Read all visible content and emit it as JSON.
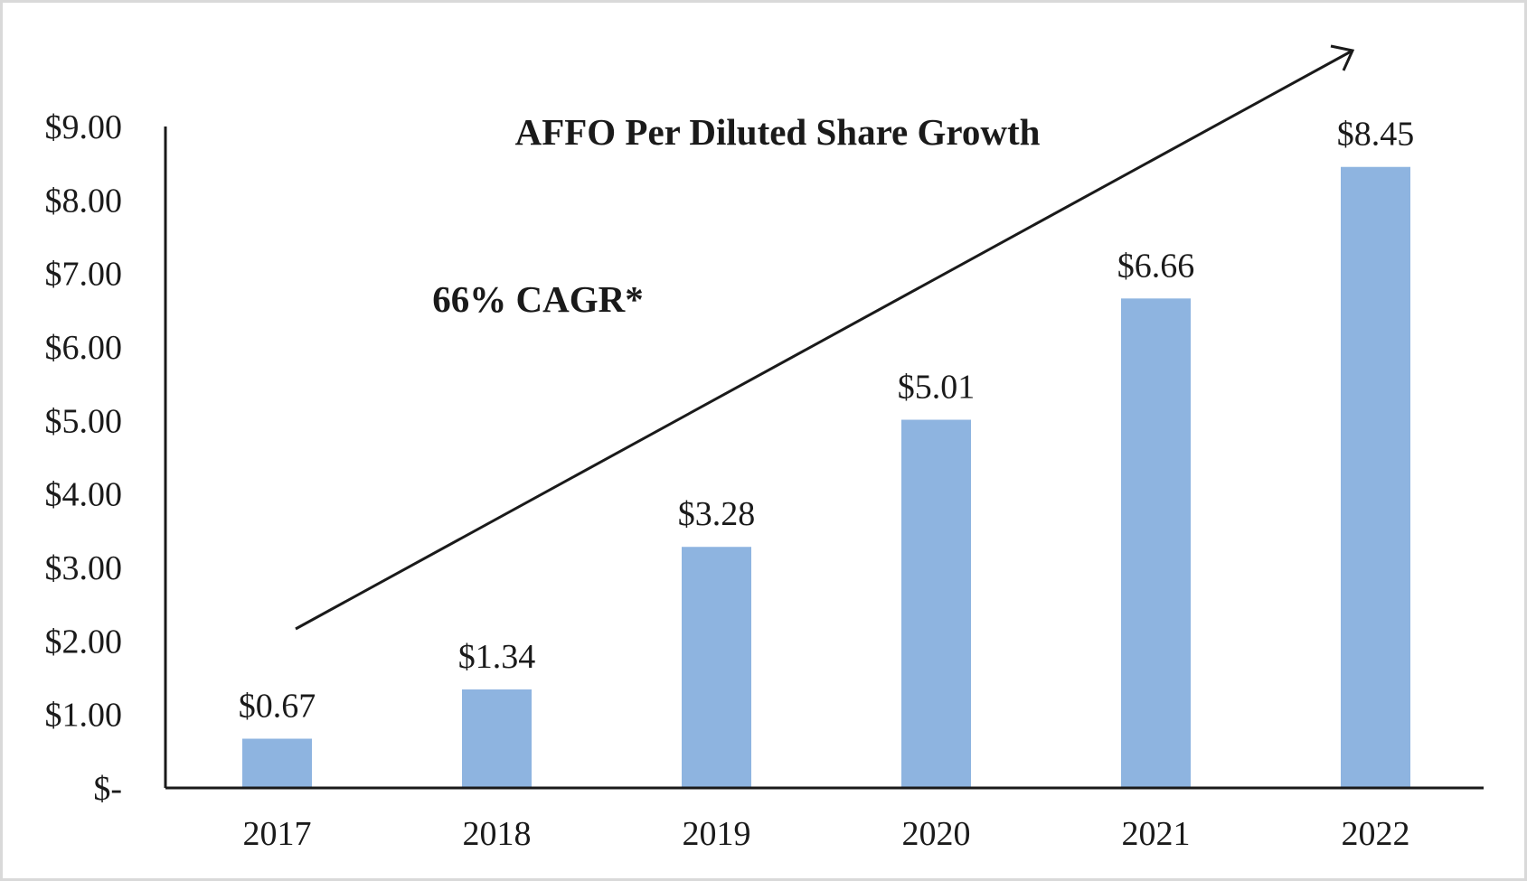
{
  "chart_data": {
    "type": "bar",
    "title": "AFFO Per Diluted Share Growth",
    "xlabel": "",
    "ylabel": "",
    "categories": [
      "2017",
      "2018",
      "2019",
      "2020",
      "2021",
      "2022"
    ],
    "values": [
      0.67,
      1.34,
      3.28,
      5.01,
      6.66,
      8.45
    ],
    "data_labels": [
      "$0.67",
      "$1.34",
      "$3.28",
      "$5.01",
      "$6.66",
      "$8.45"
    ],
    "y_ticks": [
      0,
      1,
      2,
      3,
      4,
      5,
      6,
      7,
      8,
      9
    ],
    "y_tick_labels": [
      "$-",
      "$1.00",
      "$2.00",
      "$3.00",
      "$4.00",
      "$5.00",
      "$6.00",
      "$7.00",
      "$8.00",
      "$9.00"
    ],
    "ylim": [
      0,
      9
    ],
    "grid": false,
    "legend": "none",
    "annotation": "66% CAGR*",
    "colors": {
      "bar": "#8eb4e0",
      "axis": "#1a1a1a",
      "text": "#1a1a1a",
      "border": "#d9d9d9"
    }
  }
}
